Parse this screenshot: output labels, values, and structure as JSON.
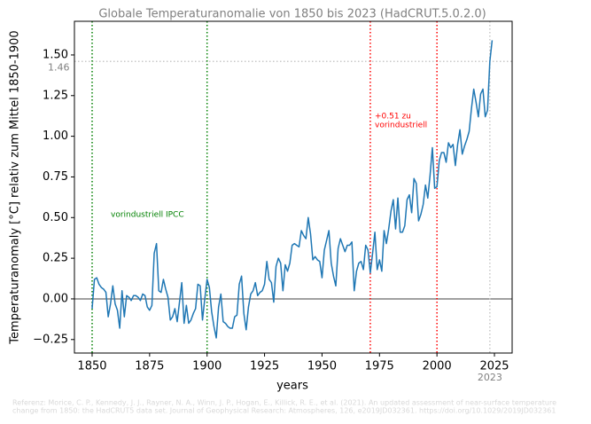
{
  "chart_data": {
    "type": "line",
    "title": "Globale Temperaturanomalie von 1850 bis 2023 (HadCRUT.5.0.2.0)",
    "x_label": "years",
    "y_label": "Temperaturanomaly [°C] relativ zum Mittel 1850-1900",
    "x": [
      1850,
      1851,
      1852,
      1853,
      1854,
      1855,
      1856,
      1857,
      1858,
      1859,
      1860,
      1861,
      1862,
      1863,
      1864,
      1865,
      1866,
      1867,
      1868,
      1869,
      1870,
      1871,
      1872,
      1873,
      1874,
      1875,
      1876,
      1877,
      1878,
      1879,
      1880,
      1881,
      1882,
      1883,
      1884,
      1885,
      1886,
      1887,
      1888,
      1889,
      1890,
      1891,
      1892,
      1893,
      1894,
      1895,
      1896,
      1897,
      1898,
      1899,
      1900,
      1901,
      1902,
      1903,
      1904,
      1905,
      1906,
      1907,
      1908,
      1909,
      1910,
      1911,
      1912,
      1913,
      1914,
      1915,
      1916,
      1917,
      1918,
      1919,
      1920,
      1921,
      1922,
      1923,
      1924,
      1925,
      1926,
      1927,
      1928,
      1929,
      1930,
      1931,
      1932,
      1933,
      1934,
      1935,
      1936,
      1937,
      1938,
      1939,
      1940,
      1941,
      1942,
      1943,
      1944,
      1945,
      1946,
      1947,
      1948,
      1949,
      1950,
      1951,
      1952,
      1953,
      1954,
      1955,
      1956,
      1957,
      1958,
      1959,
      1960,
      1961,
      1962,
      1963,
      1964,
      1965,
      1966,
      1967,
      1968,
      1969,
      1970,
      1971,
      1972,
      1973,
      1974,
      1975,
      1976,
      1977,
      1978,
      1979,
      1980,
      1981,
      1982,
      1983,
      1984,
      1985,
      1986,
      1987,
      1988,
      1989,
      1990,
      1991,
      1992,
      1993,
      1994,
      1995,
      1996,
      1997,
      1998,
      1999,
      2000,
      2001,
      2002,
      2003,
      2004,
      2005,
      2006,
      2007,
      2008,
      2009,
      2010,
      2011,
      2012,
      2013,
      2014,
      2015,
      2016,
      2017,
      2018,
      2019,
      2020,
      2021,
      2022,
      2023,
      2024
    ],
    "series": [
      {
        "color": "#1f77b4",
        "values": [
          -0.06,
          0.12,
          0.13,
          0.09,
          0.07,
          0.06,
          0.04,
          -0.11,
          -0.03,
          0.08,
          -0.03,
          -0.07,
          -0.18,
          0.05,
          -0.11,
          0.02,
          0.01,
          -0.01,
          0.02,
          0.02,
          0.01,
          -0.01,
          0.03,
          0.02,
          -0.05,
          -0.07,
          -0.04,
          0.28,
          0.34,
          0.05,
          0.04,
          0.12,
          0.06,
          0.01,
          -0.13,
          -0.11,
          -0.06,
          -0.14,
          -0.02,
          0.1,
          -0.15,
          -0.04,
          -0.15,
          -0.13,
          -0.09,
          -0.06,
          0.09,
          0.08,
          -0.13,
          0.0,
          0.12,
          0.07,
          -0.08,
          -0.17,
          -0.24,
          -0.05,
          0.03,
          -0.14,
          -0.15,
          -0.17,
          -0.18,
          -0.18,
          -0.11,
          -0.1,
          0.09,
          0.14,
          -0.09,
          -0.19,
          -0.05,
          0.03,
          0.05,
          0.1,
          0.02,
          0.04,
          0.05,
          0.09,
          0.23,
          0.12,
          0.1,
          -0.02,
          0.2,
          0.25,
          0.22,
          0.05,
          0.21,
          0.17,
          0.22,
          0.33,
          0.34,
          0.33,
          0.32,
          0.42,
          0.39,
          0.37,
          0.5,
          0.4,
          0.24,
          0.26,
          0.24,
          0.23,
          0.13,
          0.3,
          0.36,
          0.42,
          0.22,
          0.14,
          0.08,
          0.31,
          0.37,
          0.33,
          0.29,
          0.33,
          0.33,
          0.35,
          0.05,
          0.17,
          0.22,
          0.23,
          0.18,
          0.33,
          0.3,
          0.16,
          0.28,
          0.41,
          0.18,
          0.24,
          0.17,
          0.42,
          0.34,
          0.43,
          0.54,
          0.61,
          0.43,
          0.62,
          0.41,
          0.41,
          0.45,
          0.61,
          0.64,
          0.53,
          0.74,
          0.71,
          0.48,
          0.52,
          0.58,
          0.7,
          0.62,
          0.76,
          0.93,
          0.68,
          0.69,
          0.85,
          0.9,
          0.9,
          0.84,
          0.96,
          0.93,
          0.95,
          0.82,
          0.95,
          1.04,
          0.89,
          0.94,
          0.98,
          1.03,
          1.17,
          1.29,
          1.21,
          1.12,
          1.26,
          1.29,
          1.12,
          1.16,
          1.46,
          1.59
        ]
      }
    ],
    "xlim": [
      1842.3,
      2032.7
    ],
    "ylim": [
      -0.333,
      1.707
    ],
    "xticks": [
      1850,
      1875,
      1900,
      1925,
      1950,
      1975,
      2000,
      2025
    ],
    "yticks": [
      {
        "value": -0.25,
        "label": "−0.25"
      },
      {
        "value": 0,
        "label": "0.00"
      },
      {
        "value": 0.25,
        "label": "0.25"
      },
      {
        "value": 0.5,
        "label": "0.50"
      },
      {
        "value": 0.75,
        "label": "0.75"
      },
      {
        "value": 1.0,
        "label": "1.00"
      },
      {
        "value": 1.25,
        "label": "1.25"
      },
      {
        "value": 1.5,
        "label": "1.50"
      }
    ],
    "zero_line_color": "gray",
    "vlines": [
      {
        "x": 1850,
        "color": "green"
      },
      {
        "x": 1900,
        "color": "green"
      },
      {
        "x": 1971,
        "color": "red"
      },
      {
        "x": 2000,
        "color": "red"
      }
    ],
    "latest": {
      "year": 2023,
      "anomaly": 1.46,
      "color": "#c8c8c8"
    },
    "annotations": [
      {
        "lines": [
          "vorindustriell IPCC"
        ],
        "color": "green"
      },
      {
        "lines": [
          "+0.51 zu",
          "vorindustriell"
        ],
        "color": "red"
      }
    ],
    "reference": [
      "Referenz: Morice, C. P., Kennedy, J. J., Rayner, N. A., Winn, J. P., Hogan, E., Killick, R. E., et al. (2021). An updated assessment of near-surface temperature",
      "change from 1850: the HadCRUT5 data set. Journal of Geophysical Research: Atmospheres, 126, e2019JD032361. https://doi.org/10.1029/2019JD032361"
    ]
  }
}
